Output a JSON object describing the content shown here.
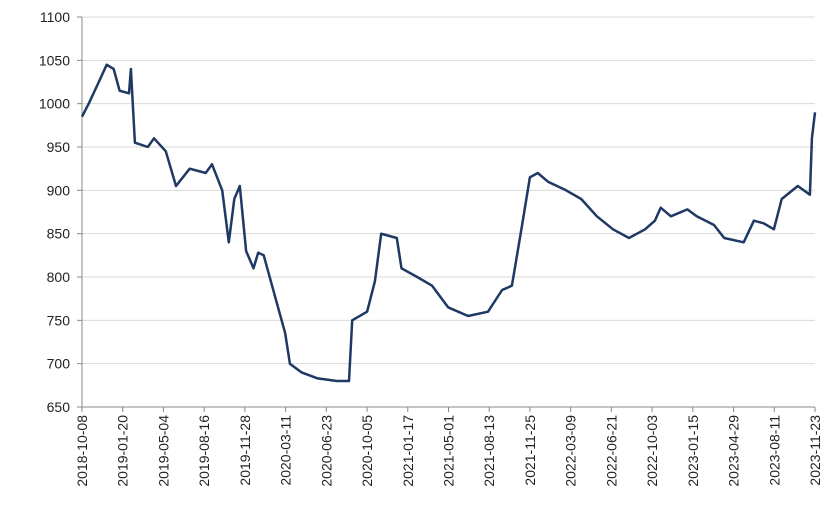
{
  "chart_data": {
    "type": "line",
    "x": [
      "2018-10-08",
      "2018-10-25",
      "2018-11-20",
      "2018-12-10",
      "2018-12-28",
      "2019-01-12",
      "2019-02-05",
      "2019-02-10",
      "2019-02-20",
      "2019-03-25",
      "2019-04-10",
      "2019-05-10",
      "2019-06-05",
      "2019-07-10",
      "2019-08-20",
      "2019-09-05",
      "2019-10-01",
      "2019-10-18",
      "2019-11-01",
      "2019-11-15",
      "2019-12-01",
      "2019-12-20",
      "2020-01-01",
      "2020-01-15",
      "2020-03-10",
      "2020-03-22",
      "2020-04-20",
      "2020-06-01",
      "2020-07-20",
      "2020-08-20",
      "2020-08-28",
      "2020-10-05",
      "2020-10-25",
      "2020-11-10",
      "2020-12-20",
      "2021-01-01",
      "2021-02-10",
      "2021-03-20",
      "2021-04-30",
      "2021-06-20",
      "2021-08-10",
      "2021-09-15",
      "2021-10-10",
      "2021-11-05",
      "2021-11-25",
      "2021-12-15",
      "2022-01-10",
      "2022-02-25",
      "2022-04-05",
      "2022-05-15",
      "2022-06-25",
      "2022-08-05",
      "2022-09-15",
      "2022-10-10",
      "2022-10-25",
      "2022-11-20",
      "2023-01-01",
      "2023-01-25",
      "2023-03-10",
      "2023-04-05",
      "2023-05-25",
      "2023-06-20",
      "2023-07-15",
      "2023-08-10",
      "2023-08-30",
      "2023-10-10",
      "2023-11-10",
      "2023-11-15",
      "2023-11-23"
    ],
    "series": [
      {
        "color": "#1f3864",
        "values": [
          985,
          1000,
          1025,
          1045,
          1040,
          1015,
          1012,
          1040,
          955,
          950,
          960,
          945,
          905,
          925,
          920,
          930,
          900,
          840,
          890,
          905,
          830,
          810,
          828,
          825,
          735,
          700,
          690,
          683,
          680,
          680,
          750,
          760,
          795,
          850,
          845,
          810,
          800,
          790,
          765,
          755,
          760,
          785,
          790,
          860,
          915,
          920,
          910,
          900,
          890,
          870,
          855,
          845,
          855,
          865,
          880,
          870,
          878,
          870,
          860,
          845,
          840,
          865,
          862,
          855,
          890,
          905,
          895,
          960,
          990
        ]
      }
    ],
    "xlim": [
      "2018-10-08",
      "2023-11-23"
    ],
    "xticks": [
      "2018-10-08",
      "2019-01-20",
      "2019-05-04",
      "2019-08-16",
      "2019-11-28",
      "2020-03-11",
      "2020-06-23",
      "2020-10-05",
      "2021-01-17",
      "2021-05-01",
      "2021-08-13",
      "2021-11-25",
      "2022-03-09",
      "2022-06-21",
      "2022-10-03",
      "2023-01-15",
      "2023-04-29",
      "2023-08-11",
      "2023-11-23"
    ],
    "ylim": [
      650,
      1100
    ],
    "yticks": [
      650,
      700,
      750,
      800,
      850,
      900,
      950,
      1000,
      1050,
      1100
    ],
    "grid": true
  }
}
